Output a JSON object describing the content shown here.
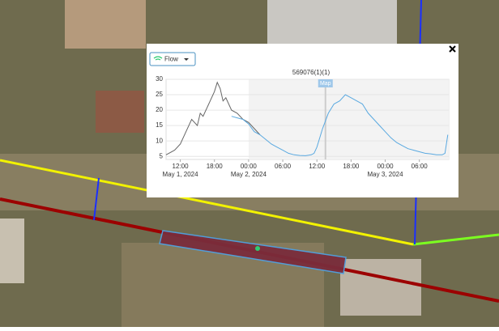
{
  "dropdown": {
    "label": "Flow"
  },
  "chart_data": {
    "type": "line",
    "title": "569076(1)(1)",
    "xlim": [
      "2024-05-01T09:30",
      "2024-05-03T11:10"
    ],
    "xticks": [
      {
        "value": "2024-05-01T12:00",
        "label": "12:00"
      },
      {
        "value": "2024-05-01T18:00",
        "label": "18:00"
      },
      {
        "value": "2024-05-02T00:00",
        "label": "00:00"
      },
      {
        "value": "2024-05-02T06:00",
        "label": "06:00"
      },
      {
        "value": "2024-05-02T12:00",
        "label": "12:00"
      },
      {
        "value": "2024-05-02T18:00",
        "label": "18:00"
      },
      {
        "value": "2024-05-03T00:00",
        "label": "00:00"
      },
      {
        "value": "2024-05-03T06:00",
        "label": "06:00"
      }
    ],
    "xtick_dates": [
      {
        "value": "2024-05-01T12:00",
        "label": "May 1, 2024"
      },
      {
        "value": "2024-05-02T00:00",
        "label": "May 2, 2024"
      },
      {
        "value": "2024-05-03T00:00",
        "label": "May 3, 2024"
      }
    ],
    "ylim": [
      4,
      30
    ],
    "yticks": [
      5,
      10,
      15,
      20,
      25,
      30
    ],
    "grid": true,
    "marker": {
      "x": "2024-05-02T13:30",
      "label": "Map"
    },
    "series": [
      {
        "color": "#666666",
        "x": [
          "2024-05-01T09:30",
          "2024-05-01T11:00",
          "2024-05-01T12:00",
          "2024-05-01T13:00",
          "2024-05-01T14:00",
          "2024-05-01T15:00",
          "2024-05-01T15:30",
          "2024-05-01T16:00",
          "2024-05-01T17:00",
          "2024-05-01T18:00",
          "2024-05-01T18:30",
          "2024-05-01T19:00",
          "2024-05-01T19:30",
          "2024-05-01T20:00",
          "2024-05-01T21:00",
          "2024-05-01T22:00",
          "2024-05-01T23:00",
          "2024-05-02T00:00",
          "2024-05-02T01:00",
          "2024-05-02T02:00"
        ],
        "values": [
          5.5,
          7,
          9,
          13,
          17,
          15,
          19,
          18,
          22,
          26,
          29,
          27,
          23,
          24,
          20,
          19,
          17,
          16,
          14,
          12
        ]
      },
      {
        "color": "#5aa9e0",
        "x": [
          "2024-05-01T21:00",
          "2024-05-01T22:00",
          "2024-05-01T23:00",
          "2024-05-02T00:00",
          "2024-05-02T01:00",
          "2024-05-02T02:00",
          "2024-05-02T03:00",
          "2024-05-02T04:00",
          "2024-05-02T05:00",
          "2024-05-02T06:00",
          "2024-05-02T07:00",
          "2024-05-02T08:00",
          "2024-05-02T09:00",
          "2024-05-02T10:00",
          "2024-05-02T11:00",
          "2024-05-02T11:30",
          "2024-05-02T12:00",
          "2024-05-02T13:00",
          "2024-05-02T14:00",
          "2024-05-02T15:00",
          "2024-05-02T16:00",
          "2024-05-02T17:00",
          "2024-05-02T17:30",
          "2024-05-02T18:00",
          "2024-05-02T19:00",
          "2024-05-02T20:00",
          "2024-05-02T21:00",
          "2024-05-02T22:00",
          "2024-05-02T23:00",
          "2024-05-03T00:00",
          "2024-05-03T01:00",
          "2024-05-03T02:00",
          "2024-05-03T03:00",
          "2024-05-03T04:00",
          "2024-05-03T05:00",
          "2024-05-03T06:00",
          "2024-05-03T07:00",
          "2024-05-03T08:00",
          "2024-05-03T09:00",
          "2024-05-03T10:00",
          "2024-05-03T10:30",
          "2024-05-03T11:00"
        ],
        "values": [
          18,
          17.5,
          17,
          15.5,
          13,
          12,
          10.5,
          9,
          8,
          7,
          6,
          5.5,
          5.3,
          5.2,
          5.5,
          6,
          8,
          14,
          19,
          22,
          23,
          25,
          24.5,
          24,
          23,
          22,
          19,
          17,
          15,
          13,
          11,
          9.5,
          8.5,
          7.5,
          7,
          6.5,
          6,
          5.8,
          5.5,
          5.5,
          6,
          12
        ]
      }
    ]
  }
}
